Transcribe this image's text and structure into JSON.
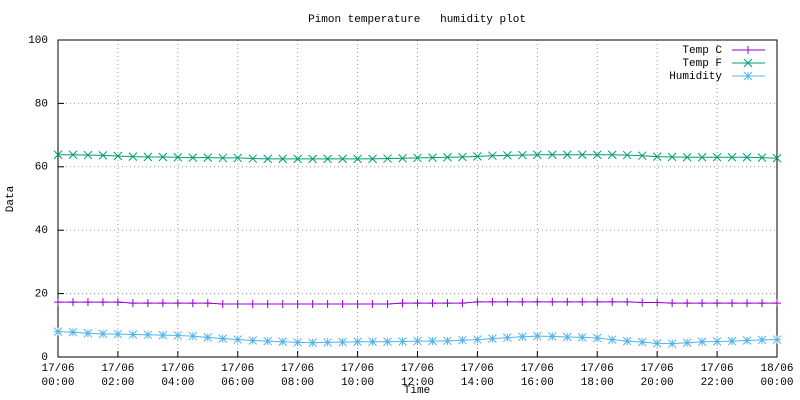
{
  "chart_data": {
    "type": "line",
    "title": "Pimon temperature   humidity plot",
    "xlabel": "Time",
    "ylabel": "Data",
    "x": [
      0,
      0.5,
      1,
      1.5,
      2,
      2.5,
      3,
      3.5,
      4,
      4.5,
      5,
      5.5,
      6,
      6.5,
      7,
      7.5,
      8,
      8.5,
      9,
      9.5,
      10,
      10.5,
      11,
      11.5,
      12,
      12.5,
      13,
      13.5,
      14,
      14.5,
      15,
      15.5,
      16,
      16.5,
      17,
      17.5,
      18,
      18.5,
      19,
      19.5,
      20,
      20.5,
      21,
      21.5,
      22,
      22.5,
      23,
      23.5,
      24
    ],
    "series": [
      {
        "name": "Temp C",
        "color": "#9400d3",
        "marker": "plus",
        "values": [
          17.3,
          17.3,
          17.3,
          17.3,
          17.3,
          17.0,
          17.0,
          17.0,
          17.0,
          17.0,
          17.0,
          16.7,
          16.7,
          16.7,
          16.7,
          16.7,
          16.7,
          16.7,
          16.7,
          16.7,
          16.7,
          16.7,
          16.7,
          17.0,
          17.0,
          17.0,
          17.0,
          17.0,
          17.4,
          17.4,
          17.4,
          17.4,
          17.4,
          17.4,
          17.4,
          17.4,
          17.4,
          17.4,
          17.4,
          17.2,
          17.2,
          17.0,
          17.0,
          17.0,
          17.0,
          17.0,
          17.0,
          17.0,
          17.0
        ]
      },
      {
        "name": "Temp F",
        "color": "#009e73",
        "marker": "cross",
        "values": [
          63.8,
          63.8,
          63.7,
          63.6,
          63.4,
          63.2,
          63.1,
          63.1,
          63.0,
          62.9,
          62.9,
          62.8,
          62.8,
          62.6,
          62.5,
          62.5,
          62.5,
          62.5,
          62.5,
          62.5,
          62.5,
          62.5,
          62.6,
          62.7,
          62.8,
          62.9,
          63.0,
          63.1,
          63.3,
          63.5,
          63.6,
          63.7,
          63.8,
          63.8,
          63.8,
          63.8,
          63.8,
          63.8,
          63.7,
          63.5,
          63.2,
          63.1,
          63.0,
          63.0,
          63.0,
          63.0,
          63.0,
          62.9,
          62.7
        ]
      },
      {
        "name": "Humidity",
        "color": "#56b4e9",
        "marker": "star",
        "values": [
          8.0,
          7.8,
          7.5,
          7.3,
          7.2,
          7.1,
          7.0,
          6.9,
          6.8,
          6.6,
          6.2,
          5.8,
          5.5,
          5.2,
          5.0,
          4.8,
          4.6,
          4.5,
          4.6,
          4.7,
          4.8,
          4.8,
          4.8,
          4.9,
          5.0,
          5.0,
          5.1,
          5.3,
          5.5,
          5.8,
          6.1,
          6.4,
          6.6,
          6.5,
          6.3,
          6.2,
          6.0,
          5.5,
          5.0,
          4.7,
          4.3,
          4.2,
          4.5,
          4.8,
          4.9,
          5.0,
          5.2,
          5.4,
          5.5
        ]
      }
    ],
    "xlim": [
      0,
      24
    ],
    "xticks": [
      {
        "value": 0,
        "label": "17/06 00:00"
      },
      {
        "value": 2,
        "label": "17/06 02:00"
      },
      {
        "value": 4,
        "label": "17/06 04:00"
      },
      {
        "value": 6,
        "label": "17/06 06:00"
      },
      {
        "value": 8,
        "label": "17/06 08:00"
      },
      {
        "value": 10,
        "label": "17/06 10:00"
      },
      {
        "value": 12,
        "label": "17/06 12:00"
      },
      {
        "value": 14,
        "label": "17/06 14:00"
      },
      {
        "value": 16,
        "label": "17/06 16:00"
      },
      {
        "value": 18,
        "label": "17/06 18:00"
      },
      {
        "value": 20,
        "label": "17/06 20:00"
      },
      {
        "value": 22,
        "label": "17/06 22:00"
      },
      {
        "value": 24,
        "label": "18/06 00:00"
      }
    ],
    "ylim": [
      0,
      100
    ],
    "yticks": [
      0,
      20,
      40,
      60,
      80,
      100
    ],
    "grid": true,
    "legend": "top-right"
  }
}
